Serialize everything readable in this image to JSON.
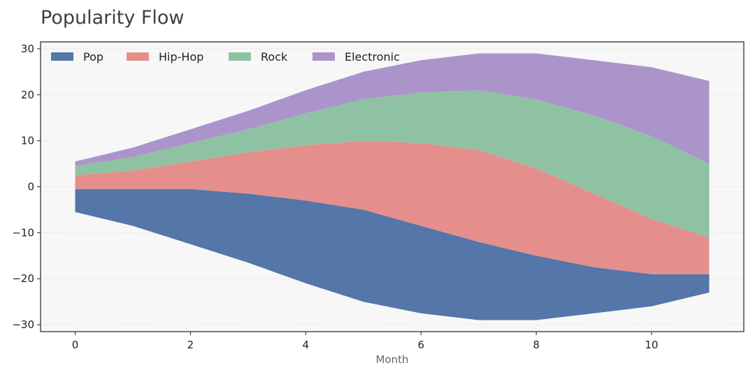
{
  "chart_data": {
    "type": "area",
    "subtype": "streamgraph",
    "title": "Popularity Flow",
    "xlabel": "Month",
    "ylabel": "",
    "x": [
      0,
      1,
      2,
      3,
      4,
      5,
      6,
      7,
      8,
      9,
      10,
      11
    ],
    "xlim": [
      -0.6,
      11.6
    ],
    "ylim": [
      -31.5,
      31.5
    ],
    "xticks": [
      0,
      2,
      4,
      6,
      8,
      10
    ],
    "yticks": [
      30,
      20,
      10,
      0,
      -10,
      -20,
      -30
    ],
    "ytick_labels": [
      "30",
      "20",
      "10",
      "0",
      "−10",
      "−20",
      "−30"
    ],
    "grid": true,
    "legend_position": "top-left",
    "baseline": [
      -5.5,
      -8.5,
      -12.5,
      -16.5,
      -21,
      -25,
      -27.5,
      -29,
      -29,
      -27.5,
      -26,
      -23
    ],
    "series": [
      {
        "name": "Pop",
        "color": "#5476a8",
        "values": [
          5,
          8,
          12,
          15,
          18,
          20,
          19,
          17,
          14,
          10,
          7,
          4
        ]
      },
      {
        "name": "Hip-Hop",
        "color": "#e58f8c",
        "values": [
          3,
          4,
          6,
          9,
          12,
          15,
          18,
          20,
          19,
          16,
          12,
          8
        ]
      },
      {
        "name": "Rock",
        "color": "#8fc2a2",
        "values": [
          2,
          3,
          4,
          5,
          7,
          9,
          11,
          13,
          15,
          17,
          18,
          16
        ]
      },
      {
        "name": "Electronic",
        "color": "#ab94ca",
        "values": [
          1,
          2,
          3,
          4,
          5,
          6,
          7,
          8,
          10,
          12,
          15,
          18
        ]
      }
    ]
  }
}
